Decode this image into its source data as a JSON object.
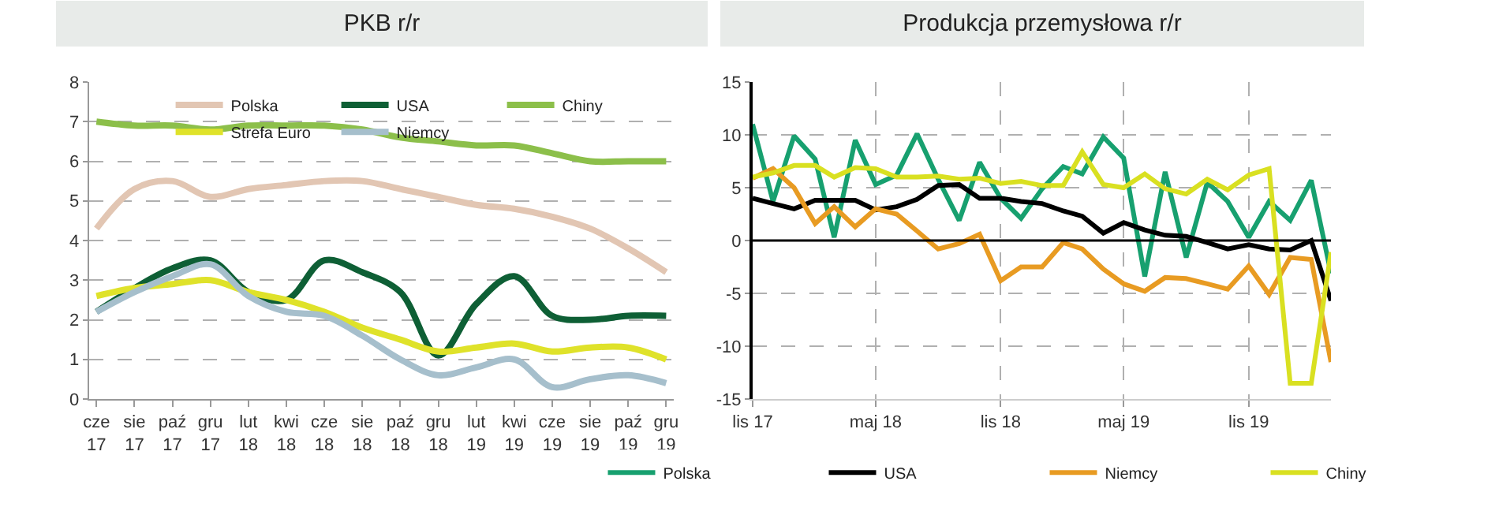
{
  "chart_data": [
    {
      "type": "line",
      "title": "PKB r/r",
      "categories": [
        "cze 17",
        "sie 17",
        "paź 17",
        "gru 17",
        "lut 18",
        "kwi 18",
        "cze 18",
        "sie 18",
        "paź 18",
        "gru 18",
        "lut 19",
        "kwi 19",
        "cze 19",
        "sie 19",
        "paź 19",
        "gru 19"
      ],
      "series": [
        {
          "name": "Polska",
          "color": "#e2c6b3",
          "values": [
            4.3,
            5.3,
            5.5,
            5.1,
            5.3,
            5.4,
            5.5,
            5.5,
            5.3,
            5.1,
            4.9,
            4.8,
            4.6,
            4.3,
            3.8,
            3.2
          ]
        },
        {
          "name": "USA",
          "color": "#0e5f35",
          "values": [
            2.2,
            2.8,
            3.3,
            3.5,
            2.7,
            2.5,
            3.5,
            3.2,
            2.7,
            1.1,
            2.4,
            3.1,
            2.1,
            2.0,
            2.1,
            2.1
          ]
        },
        {
          "name": "Chiny",
          "color": "#8cbf4a",
          "values": [
            7.0,
            6.9,
            6.9,
            6.8,
            6.9,
            6.9,
            6.9,
            6.8,
            6.6,
            6.5,
            6.4,
            6.4,
            6.2,
            6.0,
            6.0,
            6.0
          ]
        },
        {
          "name": "Strefa Euro",
          "color": "#dfe22a",
          "values": [
            2.6,
            2.8,
            2.9,
            3.0,
            2.7,
            2.5,
            2.2,
            1.8,
            1.5,
            1.2,
            1.3,
            1.4,
            1.2,
            1.3,
            1.3,
            1.0
          ]
        },
        {
          "name": "Niemcy",
          "color": "#a6bfcc",
          "values": [
            2.2,
            2.7,
            3.1,
            3.4,
            2.6,
            2.2,
            2.1,
            1.6,
            1.0,
            0.6,
            0.8,
            1.0,
            0.3,
            0.5,
            0.6,
            0.4
          ]
        }
      ],
      "ylim": [
        0,
        8
      ],
      "yticks": [
        0,
        1,
        2,
        3,
        4,
        5,
        6,
        7,
        8
      ],
      "grid": "y",
      "legend": "top",
      "line_style": "solid"
    },
    {
      "type": "line",
      "title": "Produkcja przemysłowa r/r",
      "x": [
        "2017-11",
        "2017-12",
        "2018-01",
        "2018-02",
        "2018-03",
        "2018-04",
        "2018-05",
        "2018-06",
        "2018-07",
        "2018-08",
        "2018-09",
        "2018-10",
        "2018-11",
        "2018-12",
        "2019-01",
        "2019-02",
        "2019-03",
        "2019-04",
        "2019-05",
        "2019-06",
        "2019-07",
        "2019-08",
        "2019-09",
        "2019-10",
        "2019-11",
        "2019-12",
        "2020-01",
        "2020-02",
        "2020-03"
      ],
      "series": [
        {
          "name": "Polska",
          "color": "#17a06f",
          "values": [
            11.0,
            3.7,
            9.9,
            7.7,
            0.3,
            9.5,
            5.3,
            6.2,
            10.1,
            5.8,
            1.9,
            7.4,
            4.0,
            2.1,
            4.9,
            7.0,
            6.3,
            9.8,
            7.8,
            -3.4,
            6.5,
            -1.6,
            5.5,
            3.7,
            0.3,
            3.7,
            1.9,
            5.7,
            -3.1
          ]
        },
        {
          "name": "USA",
          "color": "#000000",
          "values": [
            4.0,
            3.5,
            3.0,
            3.8,
            3.8,
            3.8,
            2.9,
            3.2,
            3.9,
            5.2,
            5.3,
            4.0,
            4.0,
            3.7,
            3.5,
            2.8,
            2.3,
            0.7,
            1.7,
            1.0,
            0.5,
            0.4,
            -0.2,
            -0.8,
            -0.4,
            -0.8,
            -0.9,
            0.0,
            -5.7
          ]
        },
        {
          "name": "Niemcy",
          "color": "#e89b22",
          "values": [
            5.9,
            6.8,
            5.0,
            1.6,
            3.2,
            1.3,
            3.0,
            2.5,
            0.9,
            -0.8,
            -0.3,
            0.6,
            -3.8,
            -2.5,
            -2.5,
            -0.2,
            -0.8,
            -2.7,
            -4.1,
            -4.8,
            -3.5,
            -3.6,
            -4.1,
            -4.6,
            -2.4,
            -5.1,
            -1.6,
            -1.8,
            -11.5
          ]
        },
        {
          "name": "Chiny",
          "color": "#d9e021",
          "values": [
            6.0,
            6.4,
            7.1,
            7.1,
            6.0,
            6.9,
            6.8,
            6.0,
            6.0,
            6.1,
            5.8,
            5.9,
            5.4,
            5.6,
            5.2,
            5.2,
            8.4,
            5.3,
            5.0,
            6.3,
            4.9,
            4.4,
            5.8,
            4.8,
            6.2,
            6.8,
            -13.5,
            -13.5,
            -1.1
          ]
        }
      ],
      "xlim": [
        "2017-11",
        "2020-03"
      ],
      "xticks": [
        {
          "value": "2017-11",
          "label": "lis 17"
        },
        {
          "value": "2018-05",
          "label": "maj 18"
        },
        {
          "value": "2018-11",
          "label": "lis 18"
        },
        {
          "value": "2019-05",
          "label": "maj 19"
        },
        {
          "value": "2019-11",
          "label": "lis 19"
        }
      ],
      "ylim": [
        -15,
        15
      ],
      "yticks": [
        -15,
        -10,
        -5,
        0,
        5,
        10,
        15
      ],
      "ref_lines": [
        {
          "axis": "y",
          "value": 0,
          "color": "#000000"
        }
      ],
      "grid": true,
      "legend": "bottom",
      "line_style": "solid"
    }
  ]
}
